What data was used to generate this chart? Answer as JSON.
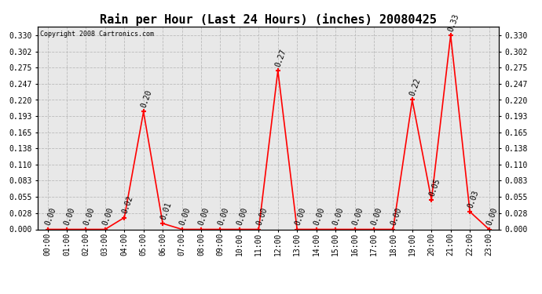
{
  "title": "Rain per Hour (Last 24 Hours) (inches) 20080425",
  "copyright": "Copyright 2008 Cartronics.com",
  "hours": [
    0,
    1,
    2,
    3,
    4,
    5,
    6,
    7,
    8,
    9,
    10,
    11,
    12,
    13,
    14,
    15,
    16,
    17,
    18,
    19,
    20,
    21,
    22,
    23
  ],
  "values": [
    0.0,
    0.0,
    0.0,
    0.0,
    0.02,
    0.2,
    0.01,
    0.0,
    0.0,
    0.0,
    0.0,
    0.0,
    0.27,
    0.0,
    0.0,
    0.0,
    0.0,
    0.0,
    0.0,
    0.22,
    0.05,
    0.33,
    0.03,
    0.0
  ],
  "xlabels": [
    "00:00",
    "01:00",
    "02:00",
    "03:00",
    "04:00",
    "05:00",
    "06:00",
    "07:00",
    "08:00",
    "09:00",
    "10:00",
    "11:00",
    "12:00",
    "13:00",
    "14:00",
    "15:00",
    "16:00",
    "17:00",
    "18:00",
    "19:00",
    "20:00",
    "21:00",
    "22:00",
    "23:00"
  ],
  "yticks": [
    0.0,
    0.028,
    0.055,
    0.083,
    0.11,
    0.138,
    0.165,
    0.193,
    0.22,
    0.247,
    0.275,
    0.302,
    0.33
  ],
  "ymax": 0.345,
  "line_color": "red",
  "marker_color": "red",
  "grid_color": "#bbbbbb",
  "bg_color": "#e8e8e8",
  "font_size_ticks": 7,
  "font_size_title": 11,
  "font_size_anno": 7,
  "font_size_copy": 6
}
